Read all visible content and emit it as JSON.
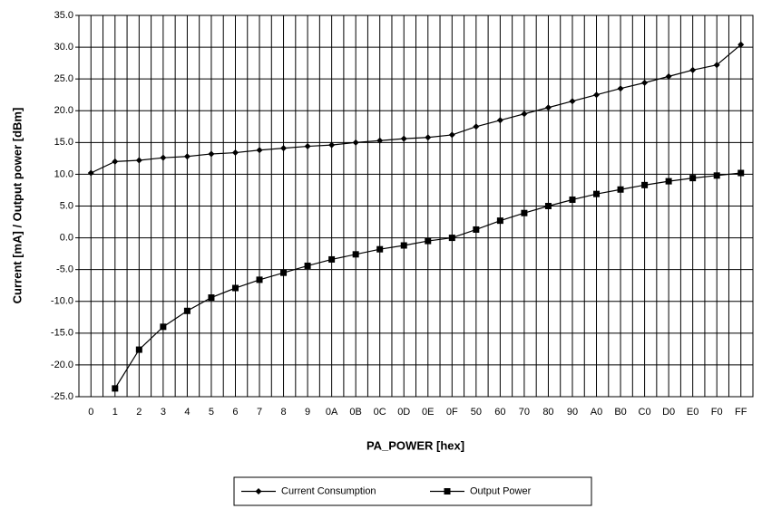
{
  "chart_data": {
    "type": "line",
    "xlabel": "PA_POWER [hex]",
    "ylabel": "Current [mA] / Output power [dBm]",
    "categories": [
      "0",
      "1",
      "2",
      "3",
      "4",
      "5",
      "6",
      "7",
      "8",
      "9",
      "0A",
      "0B",
      "0C",
      "0D",
      "0E",
      "0F",
      "50",
      "60",
      "70",
      "80",
      "90",
      "A0",
      "B0",
      "C0",
      "D0",
      "E0",
      "F0",
      "FF"
    ],
    "series": [
      {
        "name": "Current Consumption",
        "color": "#000000",
        "marker": "diamond",
        "values": [
          10.2,
          12.0,
          12.2,
          12.6,
          12.8,
          13.2,
          13.4,
          13.8,
          14.1,
          14.4,
          14.6,
          15.0,
          15.3,
          15.6,
          15.8,
          16.2,
          17.5,
          18.5,
          19.5,
          20.5,
          21.5,
          22.5,
          23.5,
          24.4,
          25.4,
          26.4,
          27.2,
          30.4
        ]
      },
      {
        "name": "Output Power",
        "color": "#000000",
        "marker": "square",
        "values": [
          null,
          -23.7,
          -17.6,
          -14.0,
          -11.5,
          -9.4,
          -7.9,
          -6.6,
          -5.5,
          -4.4,
          -3.4,
          -2.6,
          -1.8,
          -1.2,
          -0.5,
          0.0,
          1.3,
          2.7,
          3.9,
          5.0,
          6.0,
          6.9,
          7.6,
          8.3,
          8.9,
          9.4,
          9.8,
          10.2
        ]
      }
    ],
    "ylim": [
      -25,
      35
    ],
    "yticks": [
      {
        "value": -25,
        "label": "-25.0"
      },
      {
        "value": -20,
        "label": "-20.0"
      },
      {
        "value": -15,
        "label": "-15.0"
      },
      {
        "value": -10,
        "label": "-10.0"
      },
      {
        "value": -5,
        "label": "-5.0"
      },
      {
        "value": 0,
        "label": "0.0"
      },
      {
        "value": 5,
        "label": "5.0"
      },
      {
        "value": 10,
        "label": "10.0"
      },
      {
        "value": 15,
        "label": "15.0"
      },
      {
        "value": 20,
        "label": "20.0"
      },
      {
        "value": 25,
        "label": "25.0"
      },
      {
        "value": 30,
        "label": "30.0"
      },
      {
        "value": 35,
        "label": "35.0"
      }
    ],
    "grid": true,
    "legend": "bottom"
  }
}
